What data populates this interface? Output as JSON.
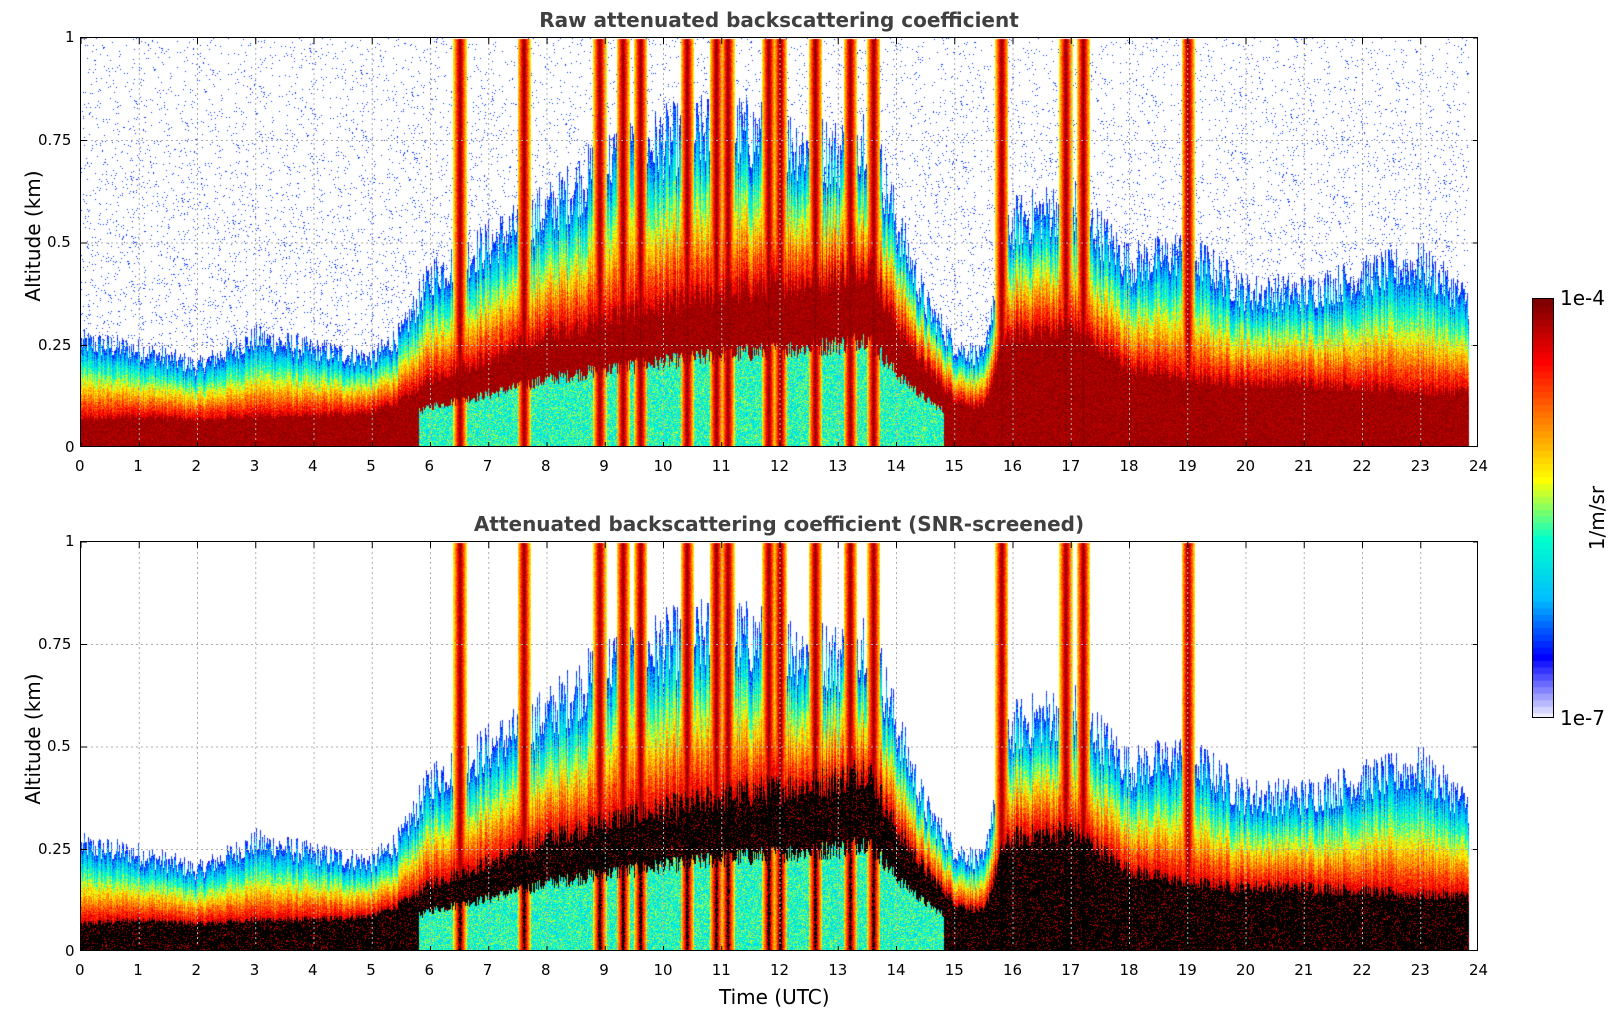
{
  "chart_data": [
    {
      "type": "heatmap",
      "title": "Raw attenuated backscattering coefficient",
      "xlabel": "",
      "ylabel": "Altitude (km)",
      "xlim": [
        0,
        24
      ],
      "ylim": [
        0,
        1
      ],
      "xticks": [
        "0",
        "1",
        "2",
        "3",
        "4",
        "5",
        "6",
        "7",
        "8",
        "9",
        "10",
        "11",
        "12",
        "13",
        "14",
        "15",
        "16",
        "17",
        "18",
        "19",
        "20",
        "21",
        "22",
        "23",
        "24"
      ],
      "yticks": [
        "0",
        "0.25",
        "0.5",
        "0.75",
        "1"
      ],
      "grid": true,
      "screened": false
    },
    {
      "type": "heatmap",
      "title": "Attenuated backscattering coefficient (SNR-screened)",
      "xlabel": "Time (UTC)",
      "ylabel": "Altitude (km)",
      "xlim": [
        0,
        24
      ],
      "ylim": [
        0,
        1
      ],
      "xticks": [
        "0",
        "1",
        "2",
        "3",
        "4",
        "5",
        "6",
        "7",
        "8",
        "9",
        "10",
        "11",
        "12",
        "13",
        "14",
        "15",
        "16",
        "17",
        "18",
        "19",
        "20",
        "21",
        "22",
        "23",
        "24"
      ],
      "yticks": [
        "0",
        "0.25",
        "0.5",
        "0.75",
        "1"
      ],
      "grid": true,
      "screened": true
    }
  ],
  "colorbar": {
    "max_label": "1e-4",
    "min_label": "1e-7",
    "unit": "1/m/sr",
    "colormap": [
      "#eeeeff",
      "#0000ff",
      "#00bfff",
      "#00ffcc",
      "#ffff00",
      "#ff8000",
      "#ff0000",
      "#800000"
    ]
  },
  "profile": {
    "note_free": true,
    "boundary_layer_top_km": [
      [
        0,
        0.26
      ],
      [
        1,
        0.24
      ],
      [
        2,
        0.2
      ],
      [
        3,
        0.27
      ],
      [
        4,
        0.24
      ],
      [
        5,
        0.22
      ],
      [
        5.5,
        0.28
      ],
      [
        6,
        0.42
      ],
      [
        7,
        0.5
      ],
      [
        8,
        0.58
      ],
      [
        9,
        0.7
      ],
      [
        10,
        0.75
      ],
      [
        11,
        0.78
      ],
      [
        12,
        0.75
      ],
      [
        13,
        0.72
      ],
      [
        13.5,
        0.78
      ],
      [
        14,
        0.55
      ],
      [
        14.5,
        0.35
      ],
      [
        15,
        0.25
      ],
      [
        15.5,
        0.22
      ],
      [
        15.8,
        0.5
      ],
      [
        16,
        0.55
      ],
      [
        17,
        0.6
      ],
      [
        18,
        0.45
      ],
      [
        19,
        0.48
      ],
      [
        20,
        0.38
      ],
      [
        21,
        0.38
      ],
      [
        22,
        0.42
      ],
      [
        23,
        0.45
      ],
      [
        23.8,
        0.36
      ]
    ],
    "aerosol_layer_km": [
      [
        0,
        0.07
      ],
      [
        1,
        0.08
      ],
      [
        2,
        0.07
      ],
      [
        3,
        0.08
      ],
      [
        4,
        0.08
      ],
      [
        5,
        0.09
      ],
      [
        5.5,
        0.12
      ],
      [
        6,
        0.17
      ],
      [
        7,
        0.22
      ],
      [
        8,
        0.28
      ],
      [
        9,
        0.32
      ],
      [
        10,
        0.35
      ],
      [
        11,
        0.38
      ],
      [
        12,
        0.4
      ],
      [
        13,
        0.42
      ],
      [
        13.5,
        0.45
      ],
      [
        14,
        0.3
      ],
      [
        14.5,
        0.2
      ],
      [
        15,
        0.12
      ],
      [
        15.5,
        0.1
      ],
      [
        15.8,
        0.25
      ],
      [
        16,
        0.28
      ],
      [
        17,
        0.3
      ],
      [
        18,
        0.2
      ],
      [
        19,
        0.17
      ],
      [
        20,
        0.16
      ],
      [
        21,
        0.16
      ],
      [
        22,
        0.15
      ],
      [
        23,
        0.14
      ],
      [
        23.8,
        0.14
      ]
    ],
    "cloud_columns_utc": [
      6.5,
      7.6,
      8.9,
      9.3,
      9.6,
      10.4,
      10.9,
      11.1,
      11.8,
      12.0,
      12.6,
      13.2,
      13.6,
      15.8,
      16.9,
      17.2,
      19.0
    ]
  }
}
